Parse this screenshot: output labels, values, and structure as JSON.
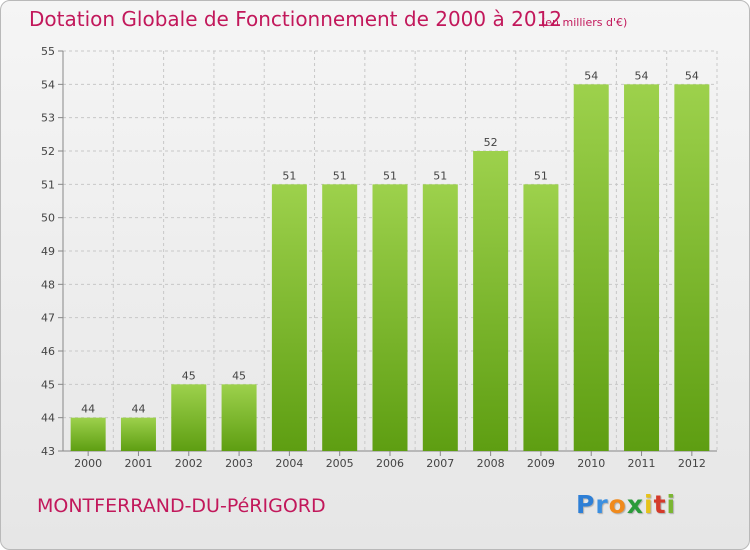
{
  "header": {
    "title": "Dotation Globale de Fonctionnement de 2000 à 2012",
    "unit_note": "(en milliers d'€)"
  },
  "footer": {
    "commune": "MONTFERRAND-DU-PéRIGORD",
    "brand": "Proxiti"
  },
  "colors": {
    "title": "#c2185b",
    "bar_top": "#9dd14c",
    "bar_bottom": "#5e9e12",
    "grid": "#c8c8c8"
  },
  "chart_data": {
    "type": "bar",
    "categories": [
      "2000",
      "2001",
      "2002",
      "2003",
      "2004",
      "2005",
      "2006",
      "2007",
      "2008",
      "2009",
      "2010",
      "2011",
      "2012"
    ],
    "values": [
      44,
      44,
      45,
      45,
      51,
      51,
      51,
      51,
      52,
      51,
      54,
      54,
      54
    ],
    "data_labels": [
      "44",
      "44",
      "45",
      "45",
      "51",
      "51",
      "51",
      "51",
      "52",
      "51",
      "54",
      "54",
      "54"
    ],
    "title": "Dotation Globale de Fonctionnement de 2000 à 2012",
    "subtitle": "(en milliers d'€)",
    "xlabel": "",
    "ylabel": "",
    "ylim": [
      43,
      55
    ],
    "yticks": [
      43,
      44,
      45,
      46,
      47,
      48,
      49,
      50,
      51,
      52,
      53,
      54,
      55
    ],
    "grid": true,
    "legend": "none"
  }
}
